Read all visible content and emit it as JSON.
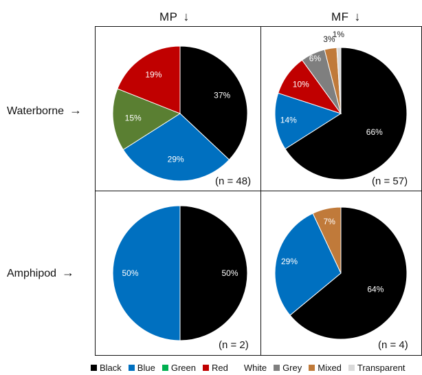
{
  "colors": {
    "Black": "#000000",
    "Blue": "#0070c0",
    "Green": "#00b050",
    "Red": "#c00000",
    "White": "#ffffff",
    "Grey": "#7f7f7f",
    "Mixed": "#c07a3a",
    "Transparent": "#d9d9d9",
    "Green_slice": "#5a7f32"
  },
  "columns": [
    {
      "label": "MP",
      "arrow": "↓"
    },
    {
      "label": "MF",
      "arrow": "↓"
    }
  ],
  "rows": [
    {
      "label": "Waterborne",
      "arrow": "→"
    },
    {
      "label": "Amphipod",
      "arrow": "→"
    }
  ],
  "legend": [
    {
      "label": "Black",
      "color": "#000000"
    },
    {
      "label": "Blue",
      "color": "#0070c0"
    },
    {
      "label": "Green",
      "color": "#00b050"
    },
    {
      "label": "Red",
      "color": "#c00000"
    },
    {
      "label": "White",
      "color": "#ffffff"
    },
    {
      "label": "Grey",
      "color": "#7f7f7f"
    },
    {
      "label": "Mixed",
      "color": "#c07a3a"
    },
    {
      "label": "Transparent",
      "color": "#d9d9d9"
    }
  ],
  "chart_data": [
    {
      "type": "pie",
      "row": "Waterborne",
      "column": "MP",
      "n_label": "(n = 48)",
      "slices": [
        {
          "category": "Black",
          "value": 37,
          "label": "37%"
        },
        {
          "category": "Blue",
          "value": 29,
          "label": "29%"
        },
        {
          "category": "Green",
          "value": 15,
          "label": "15%"
        },
        {
          "category": "Red",
          "value": 19,
          "label": "19%"
        }
      ]
    },
    {
      "type": "pie",
      "row": "Waterborne",
      "column": "MF",
      "n_label": "(n = 57)",
      "slices": [
        {
          "category": "Black",
          "value": 66,
          "label": "66%"
        },
        {
          "category": "Blue",
          "value": 14,
          "label": "14%"
        },
        {
          "category": "Red",
          "value": 10,
          "label": "10%"
        },
        {
          "category": "Grey",
          "value": 6,
          "label": "6%"
        },
        {
          "category": "Mixed",
          "value": 3,
          "label": "3%"
        },
        {
          "category": "Transparent",
          "value": 1,
          "label": "1%"
        }
      ]
    },
    {
      "type": "pie",
      "row": "Amphipod",
      "column": "MP",
      "n_label": "(n = 2)",
      "slices": [
        {
          "category": "Black",
          "value": 50,
          "label": "50%"
        },
        {
          "category": "Blue",
          "value": 50,
          "label": "50%"
        }
      ]
    },
    {
      "type": "pie",
      "row": "Amphipod",
      "column": "MF",
      "n_label": "(n = 4)",
      "slices": [
        {
          "category": "Black",
          "value": 64,
          "label": "64%"
        },
        {
          "category": "Blue",
          "value": 29,
          "label": "29%"
        },
        {
          "category": "Mixed",
          "value": 7,
          "label": "7%"
        }
      ]
    }
  ]
}
